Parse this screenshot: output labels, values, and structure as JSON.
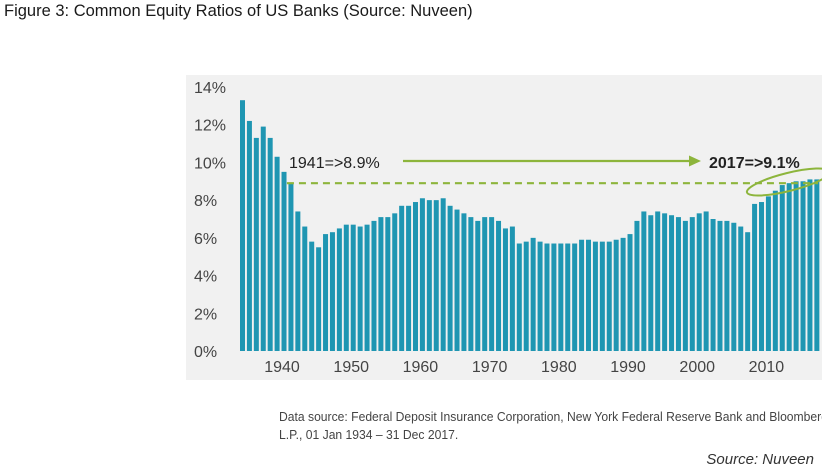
{
  "figure": {
    "title": "Figure 3: Common Equity Ratios of US Banks (Source: Nuveen)",
    "data_source_lines": [
      "Data source: Federal Deposit Insurance Corporation, New York Federal Reserve Bank and Bloomberg",
      "L.P., 01 Jan 1934 – 31 Dec 2017."
    ],
    "credit": "Source: Nuveen"
  },
  "colors": {
    "bar": "#1f96b2",
    "arrow": "#8db53c",
    "dashed": "#8db53c",
    "plot_bg": "#f1f1f1"
  },
  "chart_data": {
    "type": "bar",
    "title": "",
    "xlabel": "",
    "ylabel": "",
    "ylim": [
      0,
      14
    ],
    "yticks": [
      "0%",
      "2%",
      "4%",
      "6%",
      "8%",
      "10%",
      "12%",
      "14%"
    ],
    "xticks": [
      {
        "label": "1940",
        "year": 1940
      },
      {
        "label": "1950",
        "year": 1950
      },
      {
        "label": "1960",
        "year": 1960
      },
      {
        "label": "1970",
        "year": 1970
      },
      {
        "label": "1980",
        "year": 1980
      },
      {
        "label": "1990",
        "year": 1990
      },
      {
        "label": "2000",
        "year": 2000
      },
      {
        "label": "2010",
        "year": 2010
      }
    ],
    "grid": false,
    "years": [
      1934,
      1935,
      1936,
      1937,
      1938,
      1939,
      1940,
      1941,
      1942,
      1943,
      1944,
      1945,
      1946,
      1947,
      1948,
      1949,
      1950,
      1951,
      1952,
      1953,
      1954,
      1955,
      1956,
      1957,
      1958,
      1959,
      1960,
      1961,
      1962,
      1963,
      1964,
      1965,
      1966,
      1967,
      1968,
      1969,
      1970,
      1971,
      1972,
      1973,
      1974,
      1975,
      1976,
      1977,
      1978,
      1979,
      1980,
      1981,
      1982,
      1983,
      1984,
      1985,
      1986,
      1987,
      1988,
      1989,
      1990,
      1991,
      1992,
      1993,
      1994,
      1995,
      1996,
      1997,
      1998,
      1999,
      2000,
      2001,
      2002,
      2003,
      2004,
      2005,
      2006,
      2007,
      2008,
      2009,
      2010,
      2011,
      2012,
      2013,
      2014,
      2015,
      2016,
      2017
    ],
    "values": [
      13.3,
      12.2,
      11.3,
      11.9,
      11.3,
      10.3,
      9.5,
      8.9,
      7.4,
      6.6,
      5.8,
      5.5,
      6.2,
      6.3,
      6.5,
      6.7,
      6.7,
      6.6,
      6.7,
      6.9,
      7.1,
      7.1,
      7.3,
      7.7,
      7.7,
      7.9,
      8.1,
      8.0,
      8.0,
      8.1,
      7.7,
      7.5,
      7.3,
      7.1,
      6.9,
      7.1,
      7.1,
      6.9,
      6.5,
      6.6,
      5.7,
      5.8,
      6.0,
      5.8,
      5.7,
      5.7,
      5.7,
      5.7,
      5.7,
      5.9,
      5.9,
      5.8,
      5.8,
      5.8,
      5.9,
      6.0,
      6.2,
      6.9,
      7.4,
      7.2,
      7.4,
      7.3,
      7.2,
      7.1,
      6.9,
      7.1,
      7.3,
      7.4,
      7.0,
      6.9,
      6.9,
      6.8,
      6.6,
      6.3,
      7.8,
      7.9,
      8.2,
      8.5,
      8.8,
      8.9,
      9.0,
      9.0,
      9.1,
      9.1
    ],
    "annotations": {
      "start": {
        "label": "1941=>8.9%",
        "year": 1941,
        "value": 8.9
      },
      "end": {
        "label": "2017=>9.1%",
        "year": 2017,
        "value": 9.1
      },
      "reference_line": 8.9,
      "highlight_years": [
        2007,
        2017
      ]
    }
  }
}
